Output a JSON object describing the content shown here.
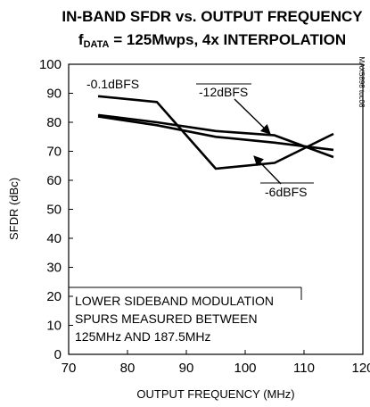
{
  "chart_data": {
    "type": "line",
    "title_line1": "IN-BAND SFDR vs. OUTPUT FREQUENCY",
    "title_line2_prefix": "f",
    "title_line2_sub": "DATA",
    "title_line2_rest": " = 125Mwps, 4x INTERPOLATION",
    "xlabel": "OUTPUT FREQUENCY (MHz)",
    "ylabel": "SFDR (dBc)",
    "xlim": [
      70,
      120
    ],
    "ylim": [
      0,
      100
    ],
    "xticks": [
      70,
      80,
      90,
      100,
      110,
      120
    ],
    "yticks": [
      0,
      10,
      20,
      30,
      40,
      50,
      60,
      70,
      80,
      90,
      100
    ],
    "grid": false,
    "series": [
      {
        "name": "-0.1dBFS",
        "x": [
          75,
          85,
          95,
          105,
          115
        ],
        "y": [
          89,
          87,
          64,
          66,
          76
        ]
      },
      {
        "name": "-6dBFS",
        "x": [
          75,
          85,
          95,
          105,
          115
        ],
        "y": [
          82,
          79,
          75,
          73,
          70.5
        ]
      },
      {
        "name": "-12dBFS",
        "x": [
          75,
          85,
          95,
          105,
          115
        ],
        "y": [
          82.5,
          80,
          77,
          75.5,
          68
        ]
      }
    ],
    "annotations": [
      "-0.1dBFS",
      "-12dBFS",
      "-6dBFS"
    ],
    "note_lines": [
      "LOWER SIDEBAND MODULATION",
      "SPURS MEASURED BETWEEN",
      "125MHz AND 187.5MHz"
    ],
    "side_label": "MAX5898 toc08"
  }
}
